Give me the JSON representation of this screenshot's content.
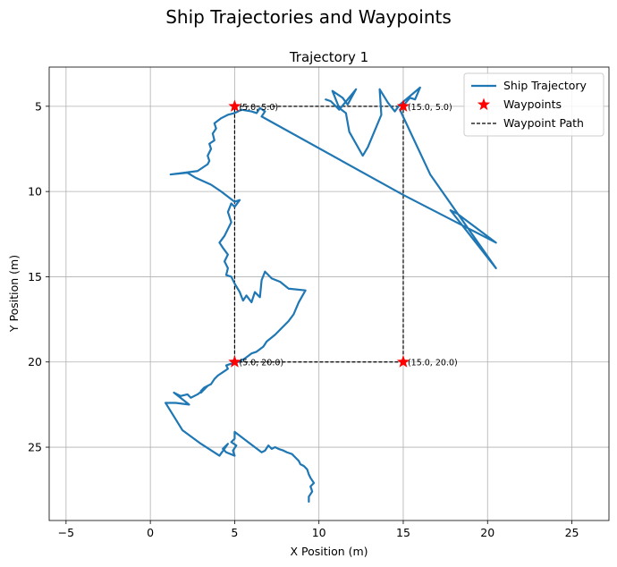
{
  "chart_data": {
    "type": "line",
    "suptitle": "Ship Trajectories and Waypoints",
    "title": "Trajectory 1",
    "xlabel": "X Position (m)",
    "ylabel": "Y Position (m)",
    "xlim": [
      -6,
      27.2
    ],
    "ylim": [
      29.3,
      2.7
    ],
    "y_inverted": true,
    "xticks": [
      -5,
      0,
      5,
      10,
      15,
      20,
      25
    ],
    "yticks": [
      5,
      10,
      15,
      20,
      25
    ],
    "grid": true,
    "legend_position": "upper right",
    "legend": [
      "Ship Trajectory",
      "Waypoints",
      "Waypoint Path"
    ],
    "colors": {
      "trajectory": "#1f77b4",
      "waypoint": "#ff0000",
      "path": "#000000",
      "grid": "#b0b0b0"
    },
    "waypoints": [
      {
        "x": 5.0,
        "y": 5.0,
        "label": "(5.0, 5.0)"
      },
      {
        "x": 15.0,
        "y": 5.0,
        "label": "(15.0, 5.0)"
      },
      {
        "x": 15.0,
        "y": 20.0,
        "label": "(15.0, 20.0)"
      },
      {
        "x": 5.0,
        "y": 20.0,
        "label": "(5.0, 20.0)"
      }
    ],
    "waypoint_path": [
      [
        5,
        5
      ],
      [
        15,
        5
      ],
      [
        15,
        20
      ],
      [
        5,
        20
      ],
      [
        5,
        5
      ]
    ],
    "trajectory": [
      [
        9.4,
        28.2
      ],
      [
        9.4,
        27.9
      ],
      [
        9.6,
        27.6
      ],
      [
        9.5,
        27.3
      ],
      [
        9.7,
        27.1
      ],
      [
        9.5,
        26.8
      ],
      [
        9.4,
        26.6
      ],
      [
        9.3,
        26.3
      ],
      [
        9.1,
        26.1
      ],
      [
        8.9,
        26.0
      ],
      [
        8.8,
        25.8
      ],
      [
        8.6,
        25.6
      ],
      [
        8.4,
        25.4
      ],
      [
        8.1,
        25.3
      ],
      [
        7.9,
        25.2
      ],
      [
        7.6,
        25.1
      ],
      [
        7.4,
        25.0
      ],
      [
        7.2,
        25.1
      ],
      [
        7.0,
        24.9
      ],
      [
        6.8,
        25.2
      ],
      [
        6.6,
        25.3
      ],
      [
        5.8,
        24.7
      ],
      [
        5.0,
        24.1
      ],
      [
        5.0,
        24.5
      ],
      [
        4.8,
        24.7
      ],
      [
        5.1,
        24.9
      ],
      [
        4.9,
        25.2
      ],
      [
        5.0,
        25.5
      ],
      [
        4.5,
        25.3
      ],
      [
        4.3,
        25.1
      ],
      [
        4.6,
        24.8
      ],
      [
        4.1,
        25.5
      ],
      [
        3.0,
        24.8
      ],
      [
        1.9,
        24.0
      ],
      [
        0.9,
        22.4
      ],
      [
        1.5,
        22.4
      ],
      [
        2.3,
        22.5
      ],
      [
        1.4,
        21.8
      ],
      [
        1.8,
        22.0
      ],
      [
        2.2,
        21.9
      ],
      [
        2.4,
        22.1
      ],
      [
        2.8,
        21.9
      ],
      [
        3.2,
        21.6
      ],
      [
        3.0,
        21.8
      ],
      [
        3.4,
        21.4
      ],
      [
        3.0,
        21.7
      ],
      [
        3.2,
        21.5
      ],
      [
        3.6,
        21.3
      ],
      [
        3.8,
        21.0
      ],
      [
        4.0,
        20.8
      ],
      [
        4.3,
        20.6
      ],
      [
        4.6,
        20.4
      ],
      [
        4.5,
        20.2
      ],
      [
        4.8,
        20.1
      ],
      [
        5.2,
        20.0
      ],
      [
        5.6,
        19.8
      ],
      [
        6.0,
        19.5
      ],
      [
        6.3,
        19.4
      ],
      [
        6.7,
        19.1
      ],
      [
        6.9,
        18.8
      ],
      [
        7.4,
        18.4
      ],
      [
        7.8,
        18.0
      ],
      [
        8.2,
        17.6
      ],
      [
        8.5,
        17.2
      ],
      [
        8.8,
        16.5
      ],
      [
        9.2,
        15.8
      ],
      [
        8.2,
        15.7
      ],
      [
        7.7,
        15.3
      ],
      [
        7.2,
        15.1
      ],
      [
        6.8,
        14.7
      ],
      [
        6.6,
        15.2
      ],
      [
        6.5,
        16.2
      ],
      [
        6.2,
        15.9
      ],
      [
        6.0,
        16.5
      ],
      [
        5.7,
        16.1
      ],
      [
        5.5,
        16.4
      ],
      [
        5.3,
        15.9
      ],
      [
        5.0,
        15.4
      ],
      [
        4.8,
        15.0
      ],
      [
        4.5,
        14.9
      ],
      [
        4.6,
        14.5
      ],
      [
        4.4,
        14.1
      ],
      [
        4.6,
        13.7
      ],
      [
        4.3,
        13.3
      ],
      [
        4.1,
        13.0
      ],
      [
        4.4,
        12.6
      ],
      [
        4.6,
        12.2
      ],
      [
        4.8,
        11.8
      ],
      [
        4.6,
        11.2
      ],
      [
        4.8,
        10.7
      ],
      [
        5.0,
        10.9
      ],
      [
        5.3,
        10.5
      ],
      [
        5.0,
        10.6
      ],
      [
        4.2,
        10.0
      ],
      [
        3.6,
        9.6
      ],
      [
        2.7,
        9.2
      ],
      [
        2.2,
        8.9
      ],
      [
        1.2,
        9.0
      ],
      [
        2.8,
        8.8
      ],
      [
        3.4,
        8.4
      ],
      [
        3.5,
        8.2
      ],
      [
        3.4,
        7.9
      ],
      [
        3.6,
        7.5
      ],
      [
        3.5,
        7.2
      ],
      [
        3.8,
        7.0
      ],
      [
        3.7,
        6.6
      ],
      [
        3.9,
        6.3
      ],
      [
        3.8,
        6.0
      ],
      [
        4.2,
        5.7
      ],
      [
        4.6,
        5.5
      ],
      [
        5.0,
        5.4
      ],
      [
        5.4,
        5.2
      ],
      [
        6.0,
        5.3
      ],
      [
        6.3,
        5.4
      ],
      [
        6.5,
        5.1
      ],
      [
        6.8,
        5.3
      ],
      [
        6.6,
        5.6
      ],
      [
        15.0,
        10.2
      ],
      [
        20.5,
        13.0
      ],
      [
        18.2,
        11.3
      ],
      [
        17.8,
        11.1
      ],
      [
        20.5,
        14.5
      ],
      [
        16.6,
        9.0
      ],
      [
        14.8,
        5.2
      ],
      [
        15.4,
        4.5
      ],
      [
        15.7,
        4.6
      ],
      [
        16.0,
        3.9
      ],
      [
        14.8,
        4.9
      ],
      [
        14.5,
        5.3
      ],
      [
        14.1,
        4.8
      ],
      [
        13.6,
        4.0
      ],
      [
        13.7,
        5.5
      ],
      [
        12.9,
        7.4
      ],
      [
        12.6,
        7.9
      ],
      [
        11.8,
        6.5
      ],
      [
        11.6,
        5.4
      ],
      [
        11.2,
        5.1
      ],
      [
        10.8,
        4.1
      ],
      [
        11.4,
        4.5
      ],
      [
        11.7,
        4.9
      ],
      [
        12.2,
        4.0
      ],
      [
        11.2,
        5.2
      ],
      [
        10.7,
        4.7
      ],
      [
        10.4,
        4.6
      ]
    ]
  }
}
